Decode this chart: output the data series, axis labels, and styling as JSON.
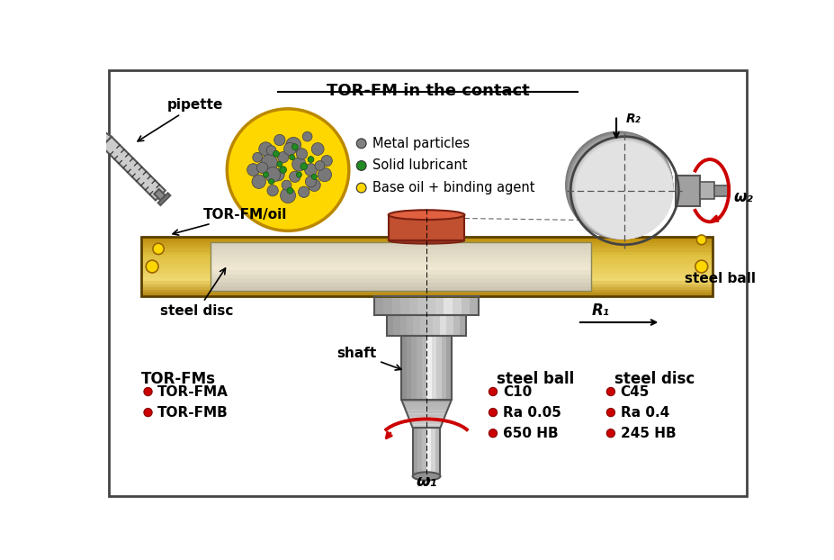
{
  "title": "TOR-FM in the contact",
  "bg_color": "#ffffff",
  "border_color": "#444444",
  "legend_items": [
    {
      "color": "#808080",
      "text": "Metal particles"
    },
    {
      "color": "#228B22",
      "text": "Solid lubricant"
    },
    {
      "color": "#FFD700",
      "text": "Base oil + binding agent"
    }
  ],
  "tor_fms_label": "TOR-FMs",
  "tor_fms_items": [
    "TOR-FMA",
    "TOR-FMB"
  ],
  "steel_ball_label": "steel ball",
  "steel_ball_items": [
    "C10",
    "Ra 0.05",
    "650 HB"
  ],
  "steel_disc_label": "steel disc",
  "steel_disc_items": [
    "C45",
    "Ra 0.4",
    "245 HB"
  ],
  "pipette_label": "pipette",
  "torfm_oil_label": "TOR-FM/oil",
  "steel_disc_annot": "steel disc",
  "shaft_label": "shaft",
  "steel_ball_annot": "steel ball",
  "omega1_label": "ω₁",
  "omega2_label": "ω₂",
  "R1_label": "R₁",
  "R2_label": "R₂",
  "disc_gold": "#C8960A",
  "disc_gold_light": "#E8C040",
  "disc_inner": "#D4B870",
  "shaft_mid": "#C0C0C0",
  "shaft_dark": "#808080",
  "shaft_light": "#E8E8E8",
  "ball_mid": "#A0A0A0",
  "ball_light": "#D8D8D8",
  "ball_dark": "#606060",
  "contact_color": "#C05030",
  "contact_top": "#E06040",
  "red_arrow": "#CC0000",
  "yellow_dot": "#FFD700"
}
